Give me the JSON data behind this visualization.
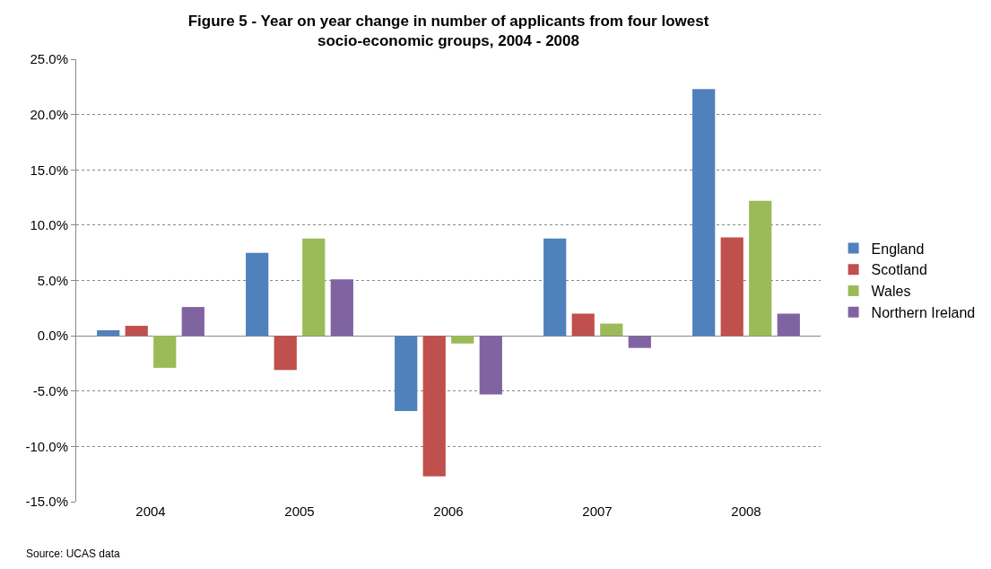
{
  "chart_data": {
    "type": "bar",
    "title": "Figure 5 - Year on year change in number of applicants from four lowest socio-economic groups, 2004 - 2008",
    "categories": [
      "2004",
      "2005",
      "2006",
      "2007",
      "2008"
    ],
    "series": [
      {
        "name": "England",
        "color": "#4f81bd",
        "values": [
          0.5,
          7.5,
          -6.8,
          8.8,
          22.3
        ]
      },
      {
        "name": "Scotland",
        "color": "#c0504d",
        "values": [
          0.9,
          -3.1,
          -12.7,
          2.0,
          8.9
        ]
      },
      {
        "name": "Wales",
        "color": "#9bbb59",
        "values": [
          -2.9,
          8.8,
          -0.7,
          1.1,
          12.2
        ]
      },
      {
        "name": "Northern Ireland",
        "color": "#8064a2",
        "values": [
          2.6,
          5.1,
          -5.3,
          -1.1,
          2.0
        ]
      }
    ],
    "ylim": [
      -15,
      25
    ],
    "yticks": [
      {
        "value": -15,
        "label": "-15.0%"
      },
      {
        "value": -10,
        "label": "-10.0%"
      },
      {
        "value": -5,
        "label": "-5.0%"
      },
      {
        "value": 0,
        "label": "0.0%"
      },
      {
        "value": 5,
        "label": "5.0%"
      },
      {
        "value": 10,
        "label": "10.0%"
      },
      {
        "value": 15,
        "label": "15.0%"
      },
      {
        "value": 20,
        "label": "20.0%"
      },
      {
        "value": 25,
        "label": "25.0%"
      }
    ],
    "grid": "y",
    "legend": "right",
    "annotations": [
      "Source: UCAS data"
    ]
  }
}
